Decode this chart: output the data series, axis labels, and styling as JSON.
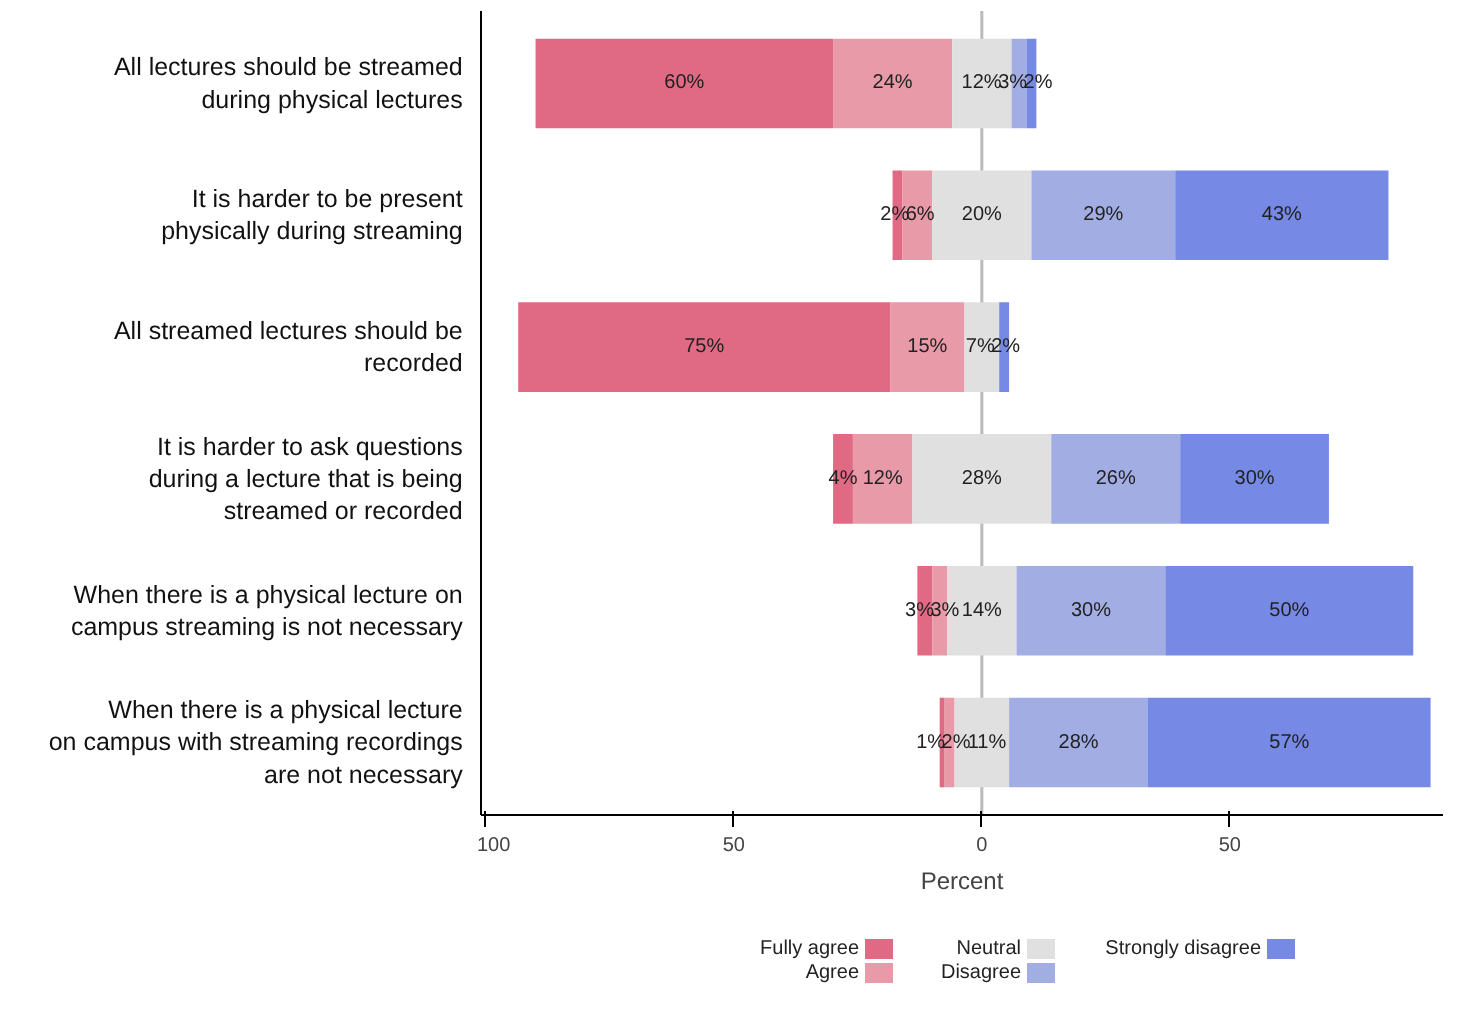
{
  "chart_data": {
    "type": "bar",
    "orientation": "horizontal",
    "xlabel": "Percent",
    "categories": [
      "All lectures should be streamed\nduring physical lectures",
      "It is harder to be present\nphysically during streaming",
      "All streamed lectures should be\nrecorded",
      "It is harder to ask questions\nduring a lecture that is being\nstreamed or recorded",
      "When there is a physical lecture on\ncampus streaming is not necessary",
      "When there is a physical lecture\non campus with streaming recordings\nare not necessary"
    ],
    "series": [
      {
        "name": "Fully agree",
        "color": "#e06a84",
        "values": [
          60,
          2,
          75,
          4,
          3,
          1
        ],
        "base": [
          -90,
          -18,
          -93.5,
          -30,
          -13,
          -8.5
        ],
        "value_labels": [
          "60%",
          "2%",
          "75%",
          "4%",
          "3%",
          "1%"
        ]
      },
      {
        "name": "Agree",
        "color": "#e89aa8",
        "values": [
          24,
          6,
          15,
          12,
          3,
          2
        ],
        "base": [
          -30,
          -16,
          -18.5,
          -26,
          -10,
          -7.5
        ],
        "value_labels": [
          "24%",
          "6%",
          "15%",
          "12%",
          "3%",
          "2%"
        ]
      },
      {
        "name": "Neutral",
        "color": "#e0e0e0",
        "values": [
          12,
          20,
          7,
          28,
          14,
          11
        ],
        "base": [
          -6,
          -10,
          -3.5,
          -14,
          -7,
          -5.5
        ],
        "value_labels": [
          "12%",
          "20%",
          "7%",
          "28%",
          "14%",
          "11%"
        ]
      },
      {
        "name": "Disagree",
        "color": "#a2aee3",
        "values": [
          3,
          29,
          null,
          26,
          30,
          28
        ],
        "base": [
          6,
          10,
          null,
          14,
          7,
          5.5
        ],
        "value_labels": [
          "3%",
          "29%",
          null,
          "26%",
          "30%",
          "28%"
        ]
      },
      {
        "name": "Strongly disagree",
        "color": "#7689e5",
        "values": [
          2,
          43,
          2,
          30,
          50,
          57
        ],
        "base": [
          9,
          39,
          3.5,
          40,
          37,
          33.5
        ],
        "value_labels": [
          "2%",
          "43%",
          "2%",
          "30%",
          "50%",
          "57%"
        ]
      }
    ],
    "xlim": [
      -101,
      93
    ],
    "xticks": [
      {
        "value": -100,
        "label": "100"
      },
      {
        "value": -50,
        "label": "50"
      },
      0,
      50
    ],
    "ref_lines": [
      {
        "axis": "x",
        "value": 0,
        "color": "#bbbbbb"
      }
    ],
    "grid": false,
    "legend": "bottom"
  }
}
